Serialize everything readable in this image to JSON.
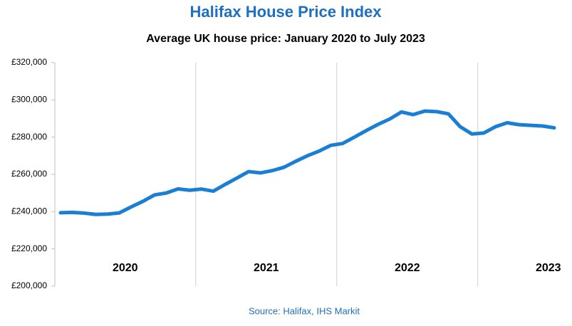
{
  "chart_data": {
    "type": "line",
    "title": "Halifax House Price Index",
    "subtitle": "Average UK house price: January 2020 to July 2023",
    "source": "Source: Halifax, IHS Markit",
    "categories": [
      null,
      null,
      null,
      null,
      null,
      null,
      "2020",
      null,
      null,
      null,
      null,
      null,
      null,
      null,
      null,
      null,
      null,
      null,
      "2021",
      null,
      null,
      null,
      null,
      null,
      null,
      null,
      null,
      null,
      null,
      null,
      "2022",
      null,
      null,
      null,
      null,
      null,
      null,
      null,
      null,
      null,
      null,
      null,
      "2023"
    ],
    "series": [
      {
        "name": "Average UK house price",
        "color": "#1a7fd4",
        "values": [
          239400,
          239600,
          239200,
          238500,
          238700,
          239300,
          242500,
          245500,
          249000,
          250000,
          252200,
          251500,
          252100,
          251000,
          254600,
          258000,
          261500,
          260800,
          262000,
          263800,
          267000,
          270000,
          272500,
          275600,
          276600,
          280000,
          283500,
          286800,
          289700,
          293500,
          292100,
          294000,
          293700,
          292500,
          285600,
          281700,
          282200,
          285600,
          287700,
          286700,
          286300,
          286000,
          285000
        ]
      }
    ],
    "ylim": [
      200000,
      320000
    ],
    "yticks": [
      {
        "value": 200000,
        "label": "£200,000"
      },
      {
        "value": 220000,
        "label": "£220,000"
      },
      {
        "value": 240000,
        "label": "£240,000"
      },
      {
        "value": 260000,
        "label": "£260,000"
      },
      {
        "value": 280000,
        "label": "£280,000"
      },
      {
        "value": 300000,
        "label": "£300,000"
      },
      {
        "value": 320000,
        "label": "£320,000"
      }
    ]
  }
}
